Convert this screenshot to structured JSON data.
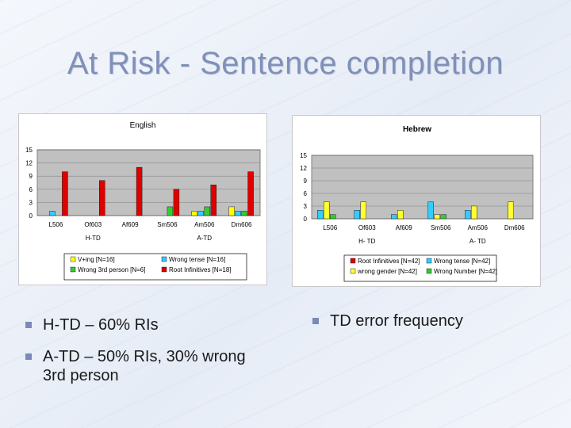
{
  "slide": {
    "title": "At Risk - Sentence completion",
    "bullets_left": [
      "H-TD – 60% RIs",
      "A-TD – 50% RIs, 30% wrong 3rd person"
    ],
    "bullets_right": [
      "TD error frequency"
    ]
  },
  "chart_data": [
    {
      "type": "bar",
      "title": "English",
      "ylim": [
        0,
        15
      ],
      "yticks": [
        0,
        3,
        6,
        9,
        12,
        15
      ],
      "categories": [
        "L506",
        "Of603",
        "Af609",
        "Sm506",
        "Am506",
        "Dm606"
      ],
      "groups": [
        {
          "label": "H-TD",
          "span": [
            0,
            2
          ]
        },
        {
          "label": "A-TD",
          "span": [
            3,
            5
          ]
        }
      ],
      "series": [
        {
          "name": "V+ing [N=16]",
          "color": "#ffff00",
          "values": [
            0,
            0,
            0,
            0,
            1,
            2
          ]
        },
        {
          "name": "Wrong tense [N=16]",
          "color": "#33ccff",
          "values": [
            1,
            0,
            0,
            0,
            1,
            1
          ]
        },
        {
          "name": "Wrong 3rd person [N=6]",
          "color": "#33cc33",
          "values": [
            0,
            0,
            0,
            2,
            2,
            1
          ]
        },
        {
          "name": "Root Infinitives [N=18]",
          "color": "#dd0000",
          "values": [
            10,
            8,
            11,
            6,
            7,
            10
          ]
        }
      ],
      "legend_order": [
        "V+ing [N=16]",
        "Wrong tense [N=16]",
        "Wrong 3rd person [N=6]",
        "Root Infinitives [N=18]"
      ]
    },
    {
      "type": "bar",
      "title": "Hebrew",
      "ylim": [
        0,
        15
      ],
      "yticks": [
        0,
        3,
        6,
        9,
        12,
        15
      ],
      "categories": [
        "L506",
        "Of603",
        "Af609",
        "Sm506",
        "Am506",
        "Dm606"
      ],
      "groups": [
        {
          "label": "H- TD",
          "span": [
            0,
            2
          ]
        },
        {
          "label": "A- TD",
          "span": [
            3,
            5
          ]
        }
      ],
      "series": [
        {
          "name": "Root Infinitives [N=42]",
          "color": "#dd0000",
          "values": [
            0,
            0,
            0,
            0,
            0,
            0
          ]
        },
        {
          "name": "Wrong tense [N=42]",
          "color": "#33ccff",
          "values": [
            2,
            2,
            1,
            4,
            2,
            0
          ]
        },
        {
          "name": "wrong gender [N=42]",
          "color": "#ffff33",
          "values": [
            4,
            4,
            2,
            1,
            3,
            4
          ]
        },
        {
          "name": "Wrong Number [N=42]",
          "color": "#33cc33",
          "values": [
            1,
            0,
            0,
            1,
            0,
            0
          ]
        }
      ],
      "legend_order": [
        "Root Infinitives [N=42]",
        "Wrong tense [N=42]",
        "wrong gender [N=42]",
        "Wrong Number [N=42]"
      ]
    }
  ]
}
